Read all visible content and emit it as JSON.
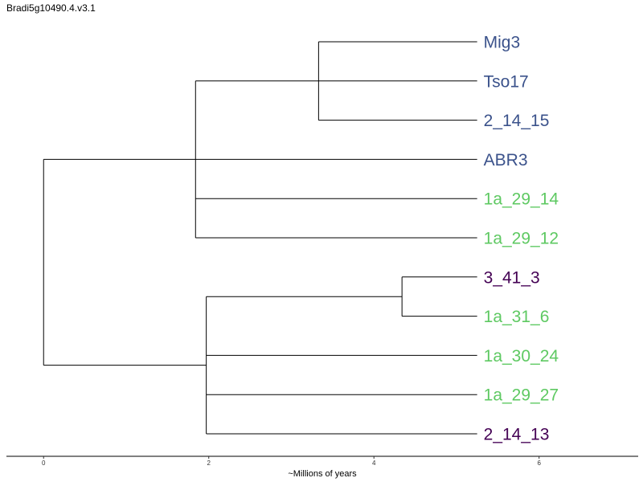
{
  "title": "Bradi5g10490.4.v3.1",
  "colors": {
    "blue": "#3b528b",
    "green": "#5ec962",
    "purple": "#440154",
    "branch": "#000000",
    "background": "#ffffff"
  },
  "chart_data": {
    "type": "dendrogram",
    "xlabel": "~Millions of years",
    "xticks": [
      0,
      2,
      4,
      6
    ],
    "xlim": [
      -0.45,
      7.2
    ],
    "leaves": [
      {
        "name": "Mig3",
        "color": "blue"
      },
      {
        "name": "Tso17",
        "color": "blue"
      },
      {
        "name": "2_14_15",
        "color": "blue"
      },
      {
        "name": "ABR3",
        "color": "blue"
      },
      {
        "name": "1a_29_14",
        "color": "green"
      },
      {
        "name": "1a_29_12",
        "color": "green"
      },
      {
        "name": "3_41_3",
        "color": "purple"
      },
      {
        "name": "1a_31_6",
        "color": "green"
      },
      {
        "name": "1a_30_24",
        "color": "green"
      },
      {
        "name": "1a_29_27",
        "color": "green"
      },
      {
        "name": "2_14_13",
        "color": "purple"
      }
    ],
    "tip_x": 5.25,
    "nodes": {
      "root": {
        "x": 0.0,
        "children": [
          "upper",
          "lower"
        ]
      },
      "upper": {
        "x": 1.84,
        "children": [
          "mig_clade",
          "ABR3",
          "1a_29_14",
          "1a_29_12"
        ]
      },
      "mig_clade": {
        "x": 3.33,
        "children": [
          "Mig3",
          "Tso17",
          "2_14_15"
        ]
      },
      "lower": {
        "x": 1.97,
        "children": [
          "pair_clade",
          "1a_30_24",
          "1a_29_27",
          "2_14_13"
        ]
      },
      "pair_clade": {
        "x": 4.34,
        "children": [
          "3_41_3",
          "1a_31_6"
        ]
      }
    }
  }
}
